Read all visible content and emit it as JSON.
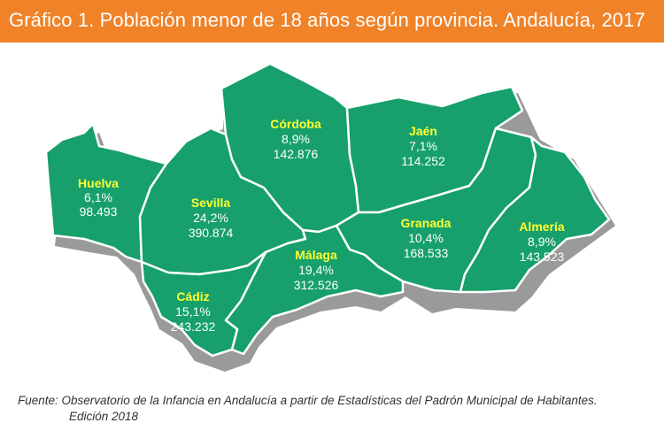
{
  "header": {
    "title": "Gráfico 1. Población menor de 18 años según provincia. Andalucía, 2017"
  },
  "colors": {
    "title_bar": "#f08228",
    "region_fill": "#17a06b",
    "border": "#ffffff",
    "shadow": "#9a9a9a",
    "name_color": "#ffff33"
  },
  "provinces": [
    {
      "name": "Huelva",
      "percent": "6,1%",
      "population": "98.493"
    },
    {
      "name": "Sevilla",
      "percent": "24,2%",
      "population": "390.874"
    },
    {
      "name": "Córdoba",
      "percent": "8,9%",
      "population": "142.876"
    },
    {
      "name": "Jaén",
      "percent": "7,1%",
      "population": "114.252"
    },
    {
      "name": "Granada",
      "percent": "10,4%",
      "population": "168.533"
    },
    {
      "name": "Almería",
      "percent": "8,9%",
      "population": "143.523"
    },
    {
      "name": "Málaga",
      "percent": "19,4%",
      "population": "312.526"
    },
    {
      "name": "Cádiz",
      "percent": "15,1%",
      "population": "243.232"
    }
  ],
  "source": {
    "line1": "Fuente: Observatorio de la Infancia en Andalucía a partir de Estadísticas del Padrón Municipal de Habitantes.",
    "line2": "Edición 2018"
  }
}
